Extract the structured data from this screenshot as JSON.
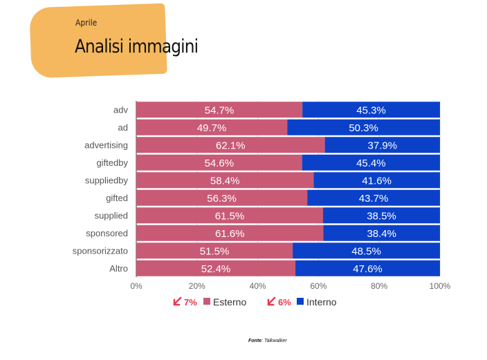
{
  "header": {
    "kicker": "Aprile",
    "title": "Analisi immagini"
  },
  "chart_data": {
    "type": "bar",
    "orientation": "horizontal",
    "stacked": true,
    "categories": [
      "adv",
      "ad",
      "advertising",
      "giftedby",
      "suppliedby",
      "gifted",
      "supplied",
      "sponsored",
      "sponsorizzato",
      "Altro"
    ],
    "series": [
      {
        "name": "Esterno",
        "color": "#c85a76",
        "values": [
          54.7,
          49.7,
          62.1,
          54.6,
          58.4,
          56.3,
          61.5,
          61.6,
          51.5,
          52.4
        ]
      },
      {
        "name": "Interno",
        "color": "#0b41c9",
        "values": [
          45.3,
          50.3,
          37.9,
          45.4,
          41.6,
          43.7,
          38.5,
          38.4,
          48.5,
          47.6
        ]
      }
    ],
    "data_labels": {
      "Esterno": [
        "54.7%",
        "49.7%",
        "62.1%",
        "54.6%",
        "58.4%",
        "56.3%",
        "61.5%",
        "61.6%",
        "51.5%",
        "52.4%"
      ],
      "Interno": [
        "45.3%",
        "50.3%",
        "37.9%",
        "45.4%",
        "41.6%",
        "43.7%",
        "38.5%",
        "38.4%",
        "48.5%",
        "47.6%"
      ]
    },
    "xlim": [
      0,
      100
    ],
    "x_ticks": [
      "0%",
      "20%",
      "40%",
      "60%",
      "80%",
      "100%"
    ],
    "legend": {
      "placement": "bottom-center",
      "items": [
        {
          "badge": "7%",
          "label": "Esterno",
          "badge_color": "#e8384f",
          "color": "#c85a76"
        },
        {
          "badge": "6%",
          "label": "Interno",
          "badge_color": "#e8384f",
          "color": "#0b41c9"
        }
      ]
    },
    "grid": true
  },
  "footer": {
    "source_label": "Fonte",
    "source_name": ": Talkwalker"
  }
}
